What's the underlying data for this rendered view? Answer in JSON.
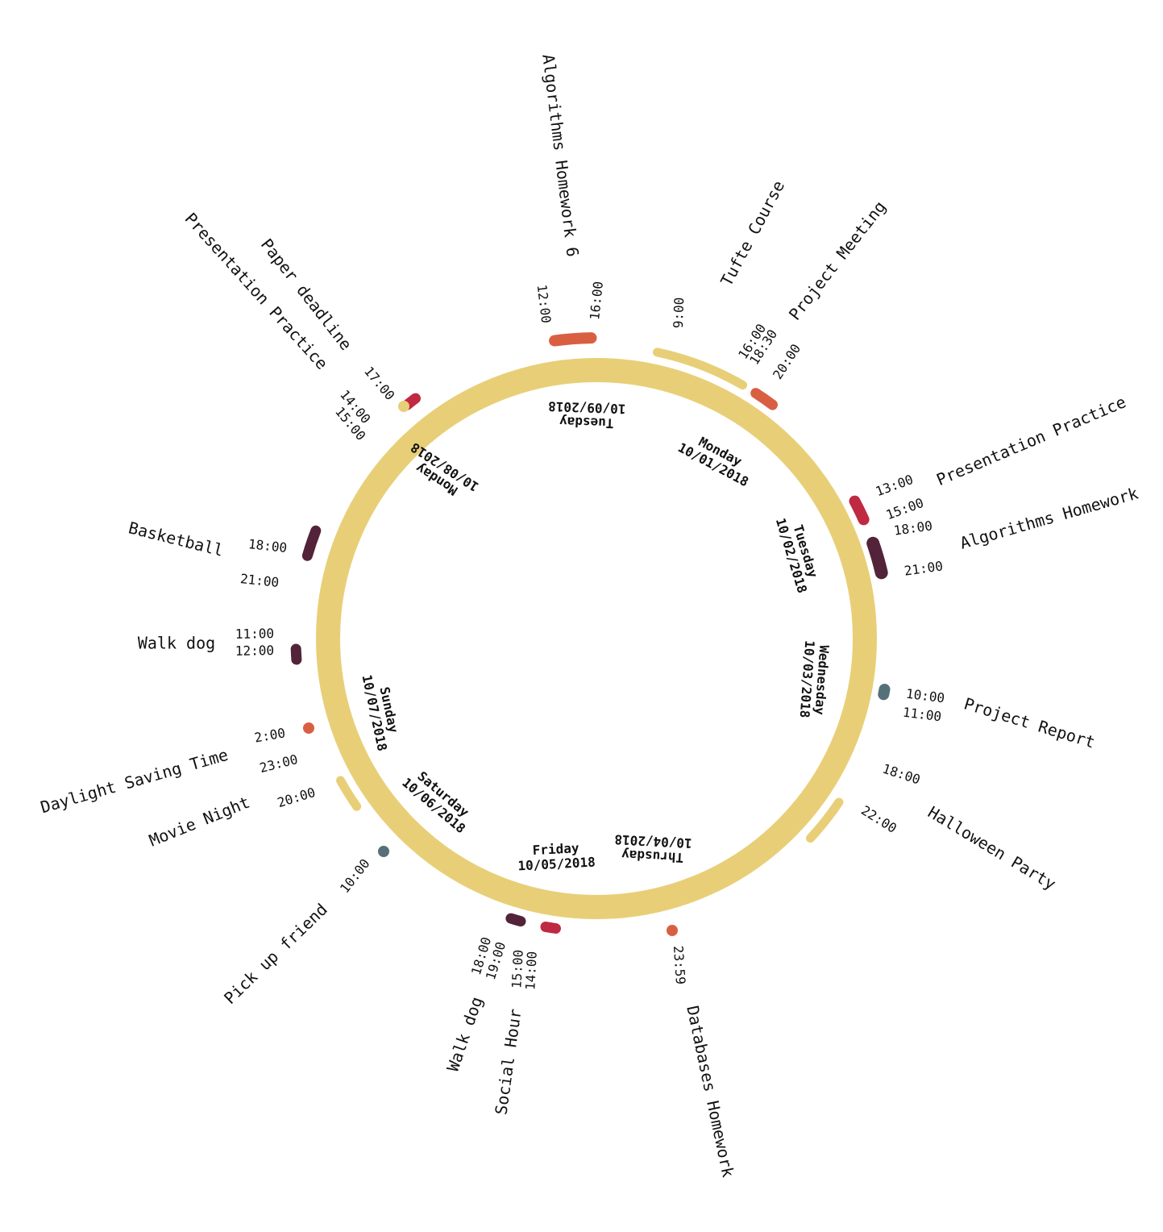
{
  "colors": {
    "ring": "#E8CF77",
    "orange": "#D95F43",
    "red": "#C02942",
    "maroon": "#53233A",
    "slate": "#567079"
  },
  "days": [
    {
      "weekday": "Monday",
      "date": "10/01/2018"
    },
    {
      "weekday": "Tuesday",
      "date": "10/02/2018"
    },
    {
      "weekday": "Wednesday",
      "date": "10/03/2018"
    },
    {
      "weekday": "Thrusday",
      "date": "10/04/2018"
    },
    {
      "weekday": "Friday",
      "date": "10/05/2018"
    },
    {
      "weekday": "Saturday",
      "date": "10/06/2018"
    },
    {
      "weekday": "Sunday",
      "date": "10/07/2018"
    },
    {
      "weekday": "Monday",
      "date": "10/08/2018"
    },
    {
      "weekday": "Tuesday",
      "date": "10/09/2018"
    }
  ],
  "events": [
    {
      "name": "Tufte Course",
      "start": "9:00",
      "end": "16:00",
      "color": "ring"
    },
    {
      "name": "Project Meeting",
      "start": "18:30",
      "end": "20:00",
      "color": "orange"
    },
    {
      "name": "Presentation Practice",
      "start": "13:00",
      "end": "15:00",
      "color": "red"
    },
    {
      "name": "Algorithms Homework",
      "start": "18:00",
      "end": "21:00",
      "color": "maroon"
    },
    {
      "name": "Project Report",
      "start": "10:00",
      "end": "11:00",
      "color": "slate"
    },
    {
      "name": "Halloween Party",
      "start": "18:00",
      "end": "22:00",
      "color": "ring"
    },
    {
      "name": "Databases Homework",
      "start": "23:59",
      "end": "",
      "color": "orange"
    },
    {
      "name": "Social Hour",
      "start": "14:00",
      "end": "15:00",
      "color": "red"
    },
    {
      "name": "Walk dog",
      "start": "18:00",
      "end": "19:00",
      "color": "maroon"
    },
    {
      "name": "Pick up friend",
      "start": "10:00",
      "end": "",
      "color": "slate"
    },
    {
      "name": "Movie Night",
      "start": "20:00",
      "end": "23:00",
      "color": "ring"
    },
    {
      "name": "Daylight Saving Time",
      "start": "2:00",
      "end": "",
      "color": "orange"
    },
    {
      "name": "Walk dog",
      "start": "11:00",
      "end": "12:00",
      "color": "maroon"
    },
    {
      "name": "Basketball",
      "start": "18:00",
      "end": "21:00",
      "color": "maroon"
    },
    {
      "name": "Presentation Practice",
      "start": "14:00",
      "end": "15:00",
      "color": "red"
    },
    {
      "name": "Paper deadline",
      "start": "17:00",
      "end": "",
      "color": "ring"
    },
    {
      "name": "Algorithms Homework 6",
      "start": "12:00",
      "end": "16:00",
      "color": "orange"
    }
  ]
}
